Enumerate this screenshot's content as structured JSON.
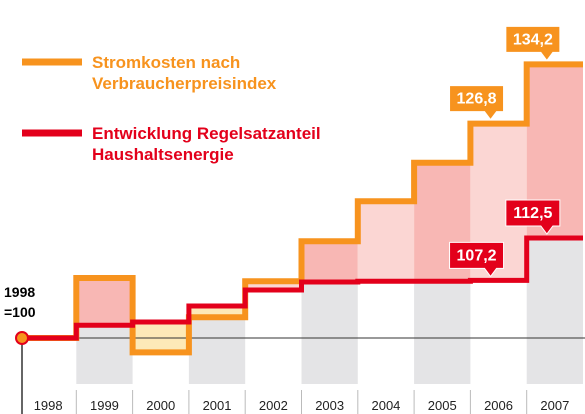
{
  "chart_data": {
    "type": "step",
    "annotation": "1998 =100",
    "categories": [
      "1998",
      "1999",
      "2000",
      "2001",
      "2002",
      "2003",
      "2004",
      "2005",
      "2006",
      "2007"
    ],
    "ylim": [
      91,
      142
    ],
    "series": [
      {
        "name": "Stromkosten nach Verbraucherpreisindex",
        "color": "#f7931e",
        "values": [
          100,
          107.5,
          98.2,
          102.6,
          107.1,
          112.1,
          117.1,
          121.9,
          126.8,
          134.2
        ],
        "value_labels": [
          null,
          null,
          null,
          null,
          null,
          null,
          null,
          null,
          "126,8",
          "134,2"
        ]
      },
      {
        "name": "Entwicklung Regelsatzanteil Haushaltsenergie",
        "color": "#e3001b",
        "values": [
          100,
          101.6,
          102.0,
          104.0,
          106.0,
          107.0,
          107.1,
          107.1,
          107.2,
          112.5
        ],
        "value_labels": [
          null,
          null,
          null,
          null,
          null,
          null,
          null,
          null,
          "107,2",
          "112,5"
        ]
      }
    ]
  }
}
